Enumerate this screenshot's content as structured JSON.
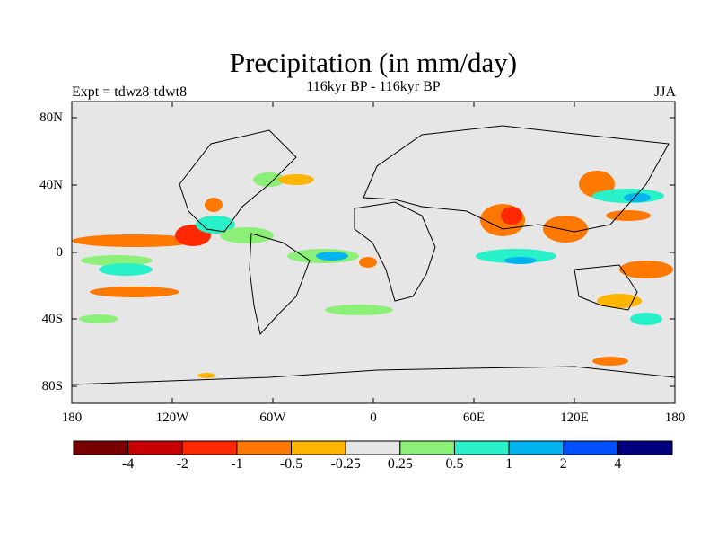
{
  "title": "Precipitation (in mm/day)",
  "subtitle": "116kyr BP - 116kyr BP",
  "left_label": "Expt = tdwz8-tdwt8",
  "right_label": "JJA",
  "map": {
    "background_color": "#e6e6e6",
    "y_ticks": [
      {
        "label": "80N"
      },
      {
        "label": "40N"
      },
      {
        "label": "0"
      },
      {
        "label": "40S"
      },
      {
        "label": "80S"
      }
    ],
    "x_ticks": [
      {
        "label": "180"
      },
      {
        "label": "120W"
      },
      {
        "label": "60W"
      },
      {
        "label": "0"
      },
      {
        "label": "60E"
      },
      {
        "label": "120E"
      },
      {
        "label": "180"
      }
    ]
  },
  "colorbar": {
    "colors": [
      "#7a0000",
      "#c80000",
      "#ff2800",
      "#ff7800",
      "#ffb400",
      "#e6e6e6",
      "#8cf078",
      "#28f0c8",
      "#00b4f0",
      "#0050ff",
      "#000080"
    ],
    "labels": [
      "-4",
      "-2",
      "-1",
      "-0.5",
      "-0.25",
      "0.25",
      "0.5",
      "1",
      "2",
      "4"
    ]
  }
}
